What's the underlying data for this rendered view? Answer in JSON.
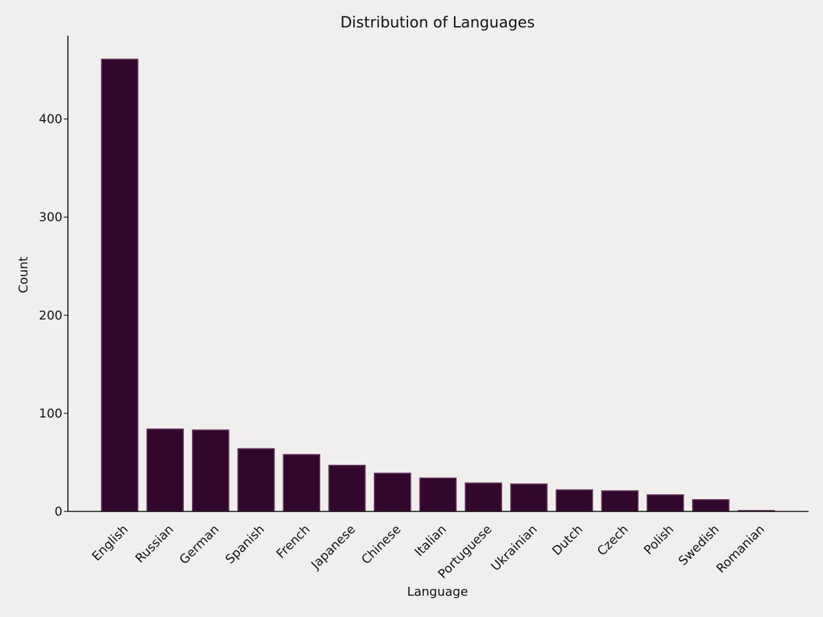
{
  "chart_data": {
    "type": "bar",
    "title": "Distribution of Languages",
    "xlabel": "Language",
    "ylabel": "Count",
    "categories": [
      "English",
      "Russian",
      "German",
      "Spanish",
      "French",
      "Japanese",
      "Chinese",
      "Italian",
      "Portuguese",
      "Ukrainian",
      "Dutch",
      "Czech",
      "Polish",
      "Swedish",
      "Romanian"
    ],
    "values": [
      461,
      84,
      83,
      64,
      58,
      47,
      39,
      34,
      29,
      28,
      22,
      21,
      17,
      12,
      1
    ],
    "yticks": [
      0,
      100,
      200,
      300,
      400
    ],
    "ylim": [
      0,
      485
    ],
    "grid": false,
    "colors": {
      "bar_fill": "#33072d",
      "bar_edge": "#6b3a63",
      "background": "#f0efed"
    }
  }
}
